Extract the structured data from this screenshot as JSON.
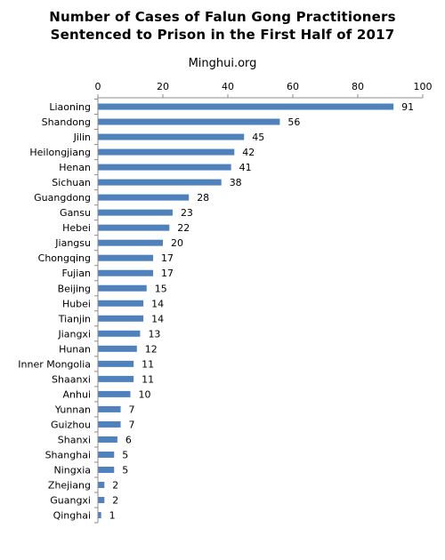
{
  "chart_data": {
    "type": "bar",
    "orientation": "horizontal",
    "title": "Number of Cases of Falun Gong Practitioners Sentenced to Prison in the First Half of 2017",
    "title_lines": [
      "Number of Cases of Falun Gong Practitioners",
      "Sentenced to Prison in the First Half of 2017"
    ],
    "watermark": "Minghui.org",
    "categories": [
      "Liaoning",
      "Shandong",
      "Jilin",
      "Heilongjiang",
      "Henan",
      "Sichuan",
      "Guangdong",
      "Gansu",
      "Hebei",
      "Jiangsu",
      "Chongqing",
      "Fujian",
      "Beijing",
      "Hubei",
      "Tianjin",
      "Jiangxi",
      "Hunan",
      "Inner Mongolia",
      "Shaanxi",
      "Anhui",
      "Yunnan",
      "Guizhou",
      "Shanxi",
      "Shanghai",
      "Ningxia",
      "Zhejiang",
      "Guangxi",
      "Qinghai"
    ],
    "values": [
      91,
      56,
      45,
      42,
      41,
      38,
      28,
      23,
      22,
      20,
      17,
      17,
      15,
      14,
      14,
      13,
      12,
      11,
      11,
      10,
      7,
      7,
      6,
      5,
      5,
      2,
      2,
      1
    ],
    "xlim": [
      0,
      100
    ],
    "xticks": [
      0,
      20,
      40,
      60,
      80,
      100
    ],
    "x_axis_position": "top",
    "grid": false,
    "data_labels": true,
    "colors": {
      "bar": "#4f81bd",
      "axis": "#8c8c8c"
    }
  }
}
